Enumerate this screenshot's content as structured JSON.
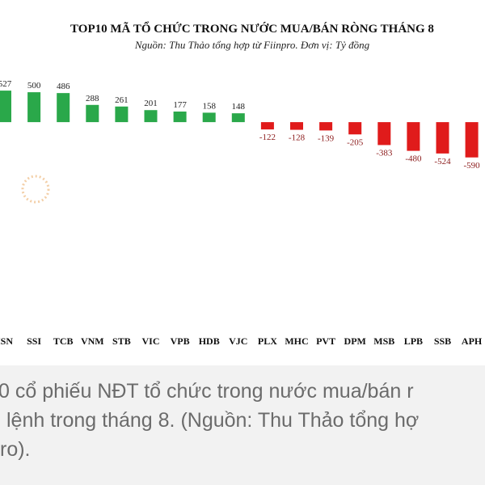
{
  "chart_data": {
    "type": "bar",
    "title": "TOP10 MÃ TỔ CHỨC TRONG NƯỚC MUA/BÁN RÒNG THÁNG 8",
    "subtitle": "Nguồn: Thu Thảo tổng hợp từ Fiinpro. Đơn vị: Tỷ đồng",
    "categories": [
      "ISN",
      "SSI",
      "TCB",
      "VNM",
      "STB",
      "VIC",
      "VPB",
      "HDB",
      "VJC",
      "PLX",
      "MHC",
      "PVT",
      "DPM",
      "MSB",
      "LPB",
      "SSB",
      "APH"
    ],
    "values": [
      527,
      500,
      486,
      288,
      261,
      201,
      177,
      158,
      148,
      -122,
      -128,
      -139,
      -205,
      -383,
      -480,
      -524,
      -590
    ],
    "color_positive": "#2aa84a",
    "color_negative": "#e01b1b",
    "ylim": [
      -600,
      650
    ]
  },
  "caption": [
    "0 cổ phiếu NĐT tổ chức trong nước mua/bán r",
    "lệnh trong tháng 8. (Nguồn: Thu Thảo tổng hợ",
    "ro)."
  ]
}
